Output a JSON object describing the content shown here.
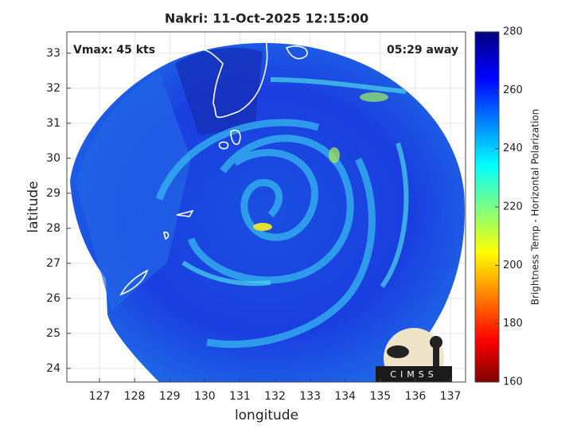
{
  "chart_data": {
    "type": "image",
    "title": "Nakri: 11-Oct-2025 12:15:00",
    "xlabel": "longitude",
    "ylabel": "latitude",
    "xlim": [
      126.07,
      137.43
    ],
    "ylim": [
      23.61,
      33.61
    ],
    "xticks": [
      127,
      128,
      129,
      130,
      131,
      132,
      133,
      134,
      135,
      136,
      137
    ],
    "yticks": [
      24,
      25,
      26,
      27,
      28,
      29,
      30,
      31,
      32,
      33
    ],
    "grid": true,
    "annotations": [
      "Vmax: 45 kts",
      "05:29 away"
    ],
    "logo": "CIMSS",
    "colorbar": {
      "label": "Brightness Temp - Horizontal Polarization",
      "lim": [
        160,
        280
      ],
      "ticks": [
        160,
        180,
        200,
        220,
        240,
        260,
        280
      ]
    }
  }
}
